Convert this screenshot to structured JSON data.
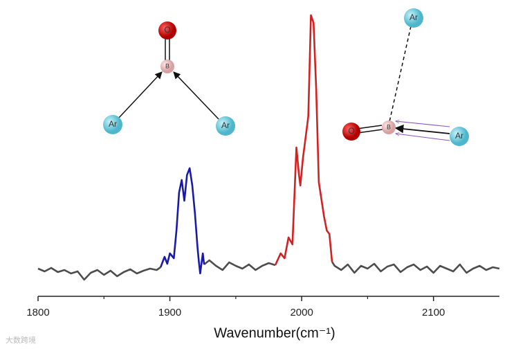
{
  "chart_data": {
    "type": "line",
    "x_label": "Wavenumber(cm⁻¹)",
    "xlim": [
      1800,
      2150
    ],
    "xticks": [
      1800,
      1900,
      2000,
      2100
    ],
    "xminorticks": [
      1850,
      1950,
      2050
    ],
    "ylim": [
      0,
      420
    ],
    "series": [
      {
        "color": "#4d4d4d",
        "x": [
          1800,
          1805,
          1810,
          1815,
          1820,
          1825,
          1830,
          1835,
          1840,
          1845,
          1850,
          1855,
          1860,
          1865,
          1870,
          1875,
          1880,
          1885,
          1890,
          1893,
          1910,
          1926,
          1930,
          1935,
          1940,
          1945,
          1950,
          1955,
          1960,
          1965,
          1970,
          1975,
          1980,
          2000,
          2023,
          2025,
          2030,
          2035,
          2040,
          2045,
          2050,
          2055,
          2060,
          2065,
          2070,
          2075,
          2080,
          2085,
          2090,
          2095,
          2100,
          2105,
          2110,
          2115,
          2120,
          2125,
          2130,
          2135,
          2140,
          2145,
          2150
        ],
        "values": [
          40,
          36,
          41,
          35,
          38,
          33,
          36,
          24,
          34,
          38,
          31,
          37,
          29,
          35,
          39,
          33,
          37,
          40,
          38,
          42,
          null,
          46,
          52,
          44,
          38,
          49,
          44,
          40,
          46,
          38,
          44,
          48,
          45,
          null,
          50,
          44,
          38,
          46,
          34,
          44,
          40,
          47,
          36,
          43,
          46,
          35,
          42,
          46,
          38,
          43,
          34,
          44,
          40,
          36,
          46,
          34,
          40,
          44,
          38,
          42,
          40
        ]
      },
      {
        "color": "#1a1aa8",
        "x": [
          1893,
          1896,
          1898,
          1900,
          1903,
          1905,
          1907,
          1909,
          1911,
          1913,
          1915,
          1917,
          1919,
          1921,
          1922,
          1923,
          1925,
          1926
        ],
        "values": [
          42,
          57,
          47,
          62,
          55,
          95,
          150,
          168,
          138,
          175,
          185,
          160,
          120,
          70,
          50,
          33,
          62,
          46
        ]
      },
      {
        "color": "#d42020",
        "x": [
          1980,
          1984,
          1987,
          1990,
          1993,
          1996,
          1998,
          1999,
          2001,
          2003,
          2005,
          2007,
          2009,
          2011,
          2013,
          2015,
          2017,
          2019,
          2021,
          2023
        ],
        "values": [
          45,
          62,
          55,
          85,
          75,
          215,
          175,
          160,
          200,
          230,
          260,
          406,
          395,
          300,
          165,
          140,
          115,
          95,
          90,
          50
        ]
      }
    ]
  },
  "molecules": [
    {
      "atoms": [
        "O",
        "B",
        "Ar",
        "Ar"
      ]
    },
    {
      "atoms": [
        "Ar",
        "O",
        "B",
        "Ar"
      ]
    }
  ],
  "watermark": "大数跨境"
}
